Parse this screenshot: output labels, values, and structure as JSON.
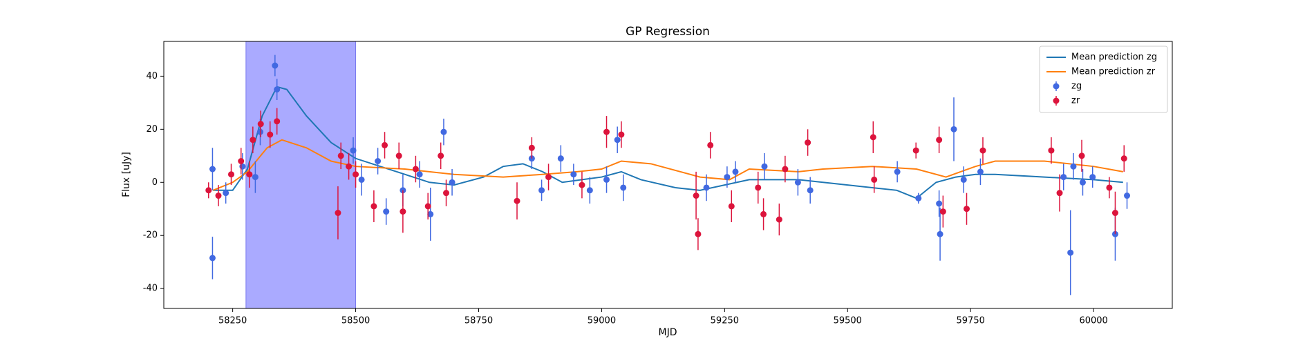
{
  "chart_data": {
    "type": "errorbar",
    "title": "GP Regression",
    "x_label": "MJD",
    "y_label": "Flux [uJy]",
    "xlim": [
      58110,
      60160
    ],
    "ylim": [
      -47.5,
      53.1
    ],
    "xticks": [
      58250,
      58500,
      58750,
      59000,
      59250,
      59500,
      59750,
      60000
    ],
    "yticks": [
      -40,
      -20,
      0,
      20,
      40
    ],
    "grid": false,
    "legend": "upper right",
    "span": [
      58277,
      58500
    ],
    "span_color": "#aaaaff",
    "series": [
      {
        "name": "Mean prediction zg",
        "type": "line",
        "color": "#1f77b4",
        "x": [
          58210,
          58250,
          58280,
          58310,
          58340,
          58360,
          58400,
          58450,
          58500,
          58550,
          58600,
          58650,
          58700,
          58760,
          58800,
          58840,
          58880,
          58920,
          58960,
          59000,
          59040,
          59080,
          59150,
          59200,
          59250,
          59300,
          59400,
          59500,
          59600,
          59640,
          59680,
          59720,
          59760,
          59800,
          59900,
          60000,
          60060
        ],
        "values": [
          -3,
          -3,
          5,
          25,
          36,
          35,
          25,
          15,
          9,
          6,
          3,
          0,
          -1,
          2,
          6,
          7,
          4,
          0,
          1,
          2,
          4,
          1,
          -2,
          -3,
          -1,
          1,
          1,
          -1,
          -3,
          -6,
          0,
          2,
          3,
          3,
          2,
          1,
          0
        ]
      },
      {
        "name": "Mean prediction zr",
        "type": "line",
        "color": "#ff7f0e",
        "x": [
          58210,
          58250,
          58280,
          58320,
          58350,
          58400,
          58450,
          58500,
          58600,
          58700,
          58800,
          58880,
          58950,
          59000,
          59040,
          59100,
          59200,
          59260,
          59300,
          59400,
          59450,
          59550,
          59640,
          59700,
          59760,
          59800,
          59900,
          60000,
          60060
        ],
        "values": [
          -3,
          0,
          4,
          13,
          16,
          13,
          8,
          6,
          5,
          3,
          2,
          3,
          4,
          5,
          8,
          7,
          2,
          1,
          5,
          4,
          5,
          6,
          5,
          2,
          6,
          8,
          8,
          6,
          4
        ]
      },
      {
        "name": "zg",
        "type": "errorbar",
        "color": "#4169e1",
        "x": [
          58209,
          58209,
          58236,
          58270,
          58296,
          58306,
          58336,
          58340,
          58495,
          58512,
          58545,
          58562,
          58596,
          58630,
          58652,
          58679,
          58696,
          58858,
          58878,
          58917,
          58943,
          58976,
          59010,
          59032,
          59044,
          59213,
          59255,
          59272,
          59331,
          59399,
          59424,
          59601,
          59644,
          59686,
          59688,
          59716,
          59736,
          59770,
          59939,
          59953,
          59959,
          59978,
          59998,
          60044,
          60068
        ],
        "values": [
          5,
          -28.5,
          -4,
          6,
          2,
          19,
          44,
          35,
          12,
          1,
          8,
          -11,
          -3,
          3,
          -12,
          19,
          0,
          9,
          -3,
          9,
          3,
          -3,
          1,
          16,
          -2,
          -2,
          2,
          4,
          6,
          0,
          -3,
          4,
          -6,
          -8,
          -19.5,
          20,
          1,
          4,
          2,
          -26.5,
          6,
          0,
          2,
          -19.5,
          -5
        ],
        "errors": [
          8,
          8,
          4,
          5,
          6,
          5,
          4,
          4,
          5,
          6,
          5,
          5,
          6,
          5,
          10,
          5,
          5,
          4,
          4,
          5,
          4,
          5,
          5,
          5,
          5,
          5,
          4,
          4,
          5,
          5,
          5,
          4,
          2,
          5,
          10,
          12,
          5,
          5,
          5,
          16,
          5,
          5,
          4,
          10,
          5
        ]
      },
      {
        "name": "zr",
        "type": "errorbar",
        "color": "#dc143c",
        "x": [
          58201,
          58221,
          58247,
          58267,
          58284,
          58291,
          58307,
          58326,
          58340,
          58464,
          58470,
          58486,
          58500,
          58537,
          58559,
          58588,
          58596,
          58622,
          58647,
          58673,
          58684,
          58828,
          58858,
          58892,
          58960,
          59010,
          59040,
          59192,
          59196,
          59221,
          59264,
          59318,
          59329,
          59361,
          59373,
          59419,
          59552,
          59554,
          59639,
          59686,
          59694,
          59742,
          59775,
          59914,
          59931,
          59976,
          60032,
          60044,
          60062
        ],
        "values": [
          -3,
          -5,
          3,
          8,
          3,
          16,
          22,
          18,
          23,
          -11.5,
          10,
          6,
          3,
          -9,
          14,
          10,
          -11,
          5,
          -9,
          10,
          -4,
          -7,
          13,
          2,
          -1,
          19,
          18,
          -5,
          -19.5,
          14,
          -9,
          -2,
          -12,
          -14,
          5,
          15,
          17,
          1,
          12,
          16,
          -11,
          -10,
          12,
          12,
          -4,
          10,
          -2,
          -11.5,
          9
        ],
        "errors": [
          3,
          4,
          4,
          5,
          5,
          5,
          5,
          5,
          5,
          10,
          5,
          5,
          5,
          6,
          5,
          5,
          8,
          5,
          5,
          5,
          5,
          7,
          4,
          5,
          5,
          6,
          5,
          9,
          6,
          5,
          6,
          6,
          6,
          6,
          5,
          5,
          6,
          5,
          3,
          5,
          6,
          6,
          5,
          5,
          7,
          6,
          4,
          8,
          5
        ]
      }
    ]
  }
}
